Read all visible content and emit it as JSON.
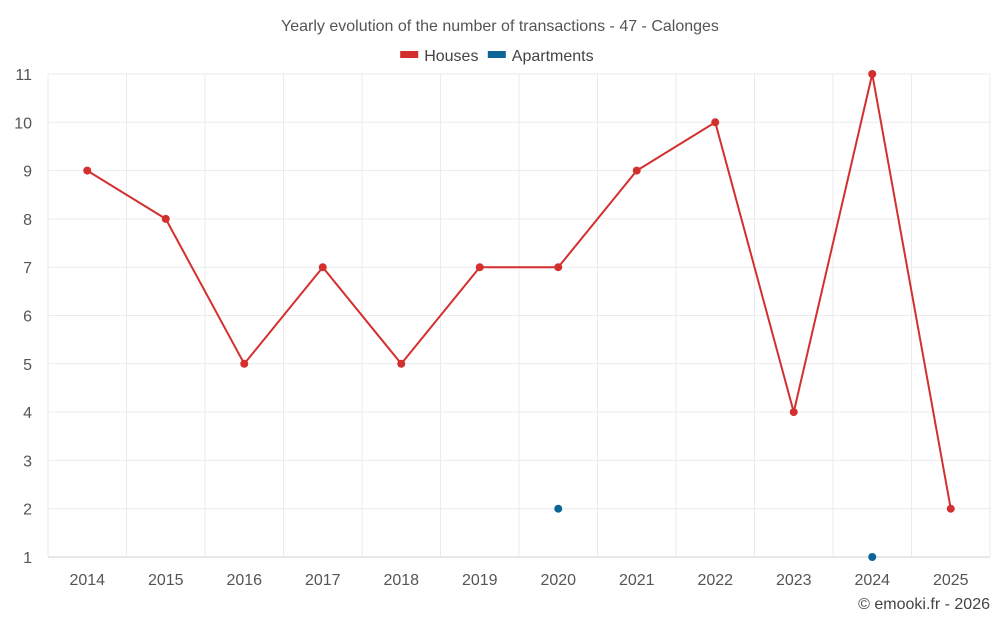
{
  "chart_data": {
    "type": "line",
    "title": "Yearly evolution of the number of transactions - 47 - Calonges",
    "xlabel": "",
    "ylabel": "",
    "categories": [
      "2014",
      "2015",
      "2016",
      "2017",
      "2018",
      "2019",
      "2020",
      "2021",
      "2022",
      "2023",
      "2024",
      "2025"
    ],
    "ylim": [
      1,
      11
    ],
    "yticks": [
      "1",
      "2",
      "3",
      "4",
      "5",
      "6",
      "7",
      "8",
      "9",
      "10",
      "11"
    ],
    "grid": true,
    "legend_position": "top-center",
    "series": [
      {
        "name": "Houses",
        "color": "#d32f2f",
        "values": [
          9,
          8,
          5,
          7,
          5,
          7,
          7,
          9,
          10,
          4,
          11,
          2
        ]
      },
      {
        "name": "Apartments",
        "color": "#0d6497",
        "values": [
          null,
          null,
          null,
          null,
          null,
          null,
          2,
          null,
          null,
          null,
          1,
          null
        ]
      }
    ]
  },
  "credit": "© emooki.fr - 2026"
}
